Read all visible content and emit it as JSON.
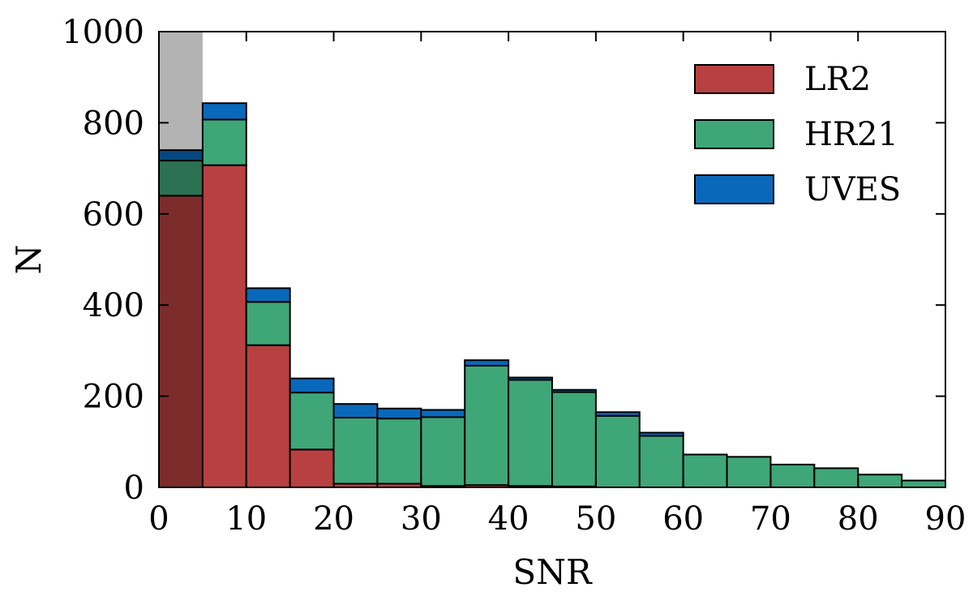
{
  "chart_data": {
    "type": "bar",
    "stacked": true,
    "xlabel": "SNR",
    "ylabel": "N",
    "xlim": [
      0,
      90
    ],
    "ylim": [
      0,
      1000
    ],
    "xticks": [
      0,
      10,
      20,
      30,
      40,
      50,
      60,
      70,
      80,
      90
    ],
    "yticks": [
      0,
      200,
      400,
      600,
      800,
      1000
    ],
    "bin_width": 5,
    "bin_starts": [
      0,
      5,
      10,
      15,
      20,
      25,
      30,
      35,
      40,
      45,
      50,
      55,
      60,
      65,
      70,
      75,
      80,
      85
    ],
    "shaded_region": {
      "x": [
        0,
        5
      ],
      "color": "#b3b3b3",
      "note_value": 1000
    },
    "series": [
      {
        "name": "LR2",
        "color": "#b84040",
        "values": [
          640,
          707,
          312,
          83,
          8,
          8,
          3,
          5,
          3,
          2,
          0,
          0,
          0,
          0,
          0,
          0,
          0,
          0
        ]
      },
      {
        "name": "HR21",
        "color": "#3fa678",
        "values": [
          77,
          100,
          95,
          125,
          145,
          143,
          151,
          262,
          233,
          207,
          157,
          113,
          72,
          67,
          50,
          42,
          28,
          15
        ]
      },
      {
        "name": "UVES",
        "color": "#0a68bb",
        "values": [
          23,
          36,
          30,
          31,
          30,
          22,
          16,
          12,
          5,
          5,
          8,
          7,
          0,
          0,
          0,
          0,
          0,
          0
        ]
      }
    ],
    "legend": {
      "position": "top-right"
    },
    "grid": false
  }
}
